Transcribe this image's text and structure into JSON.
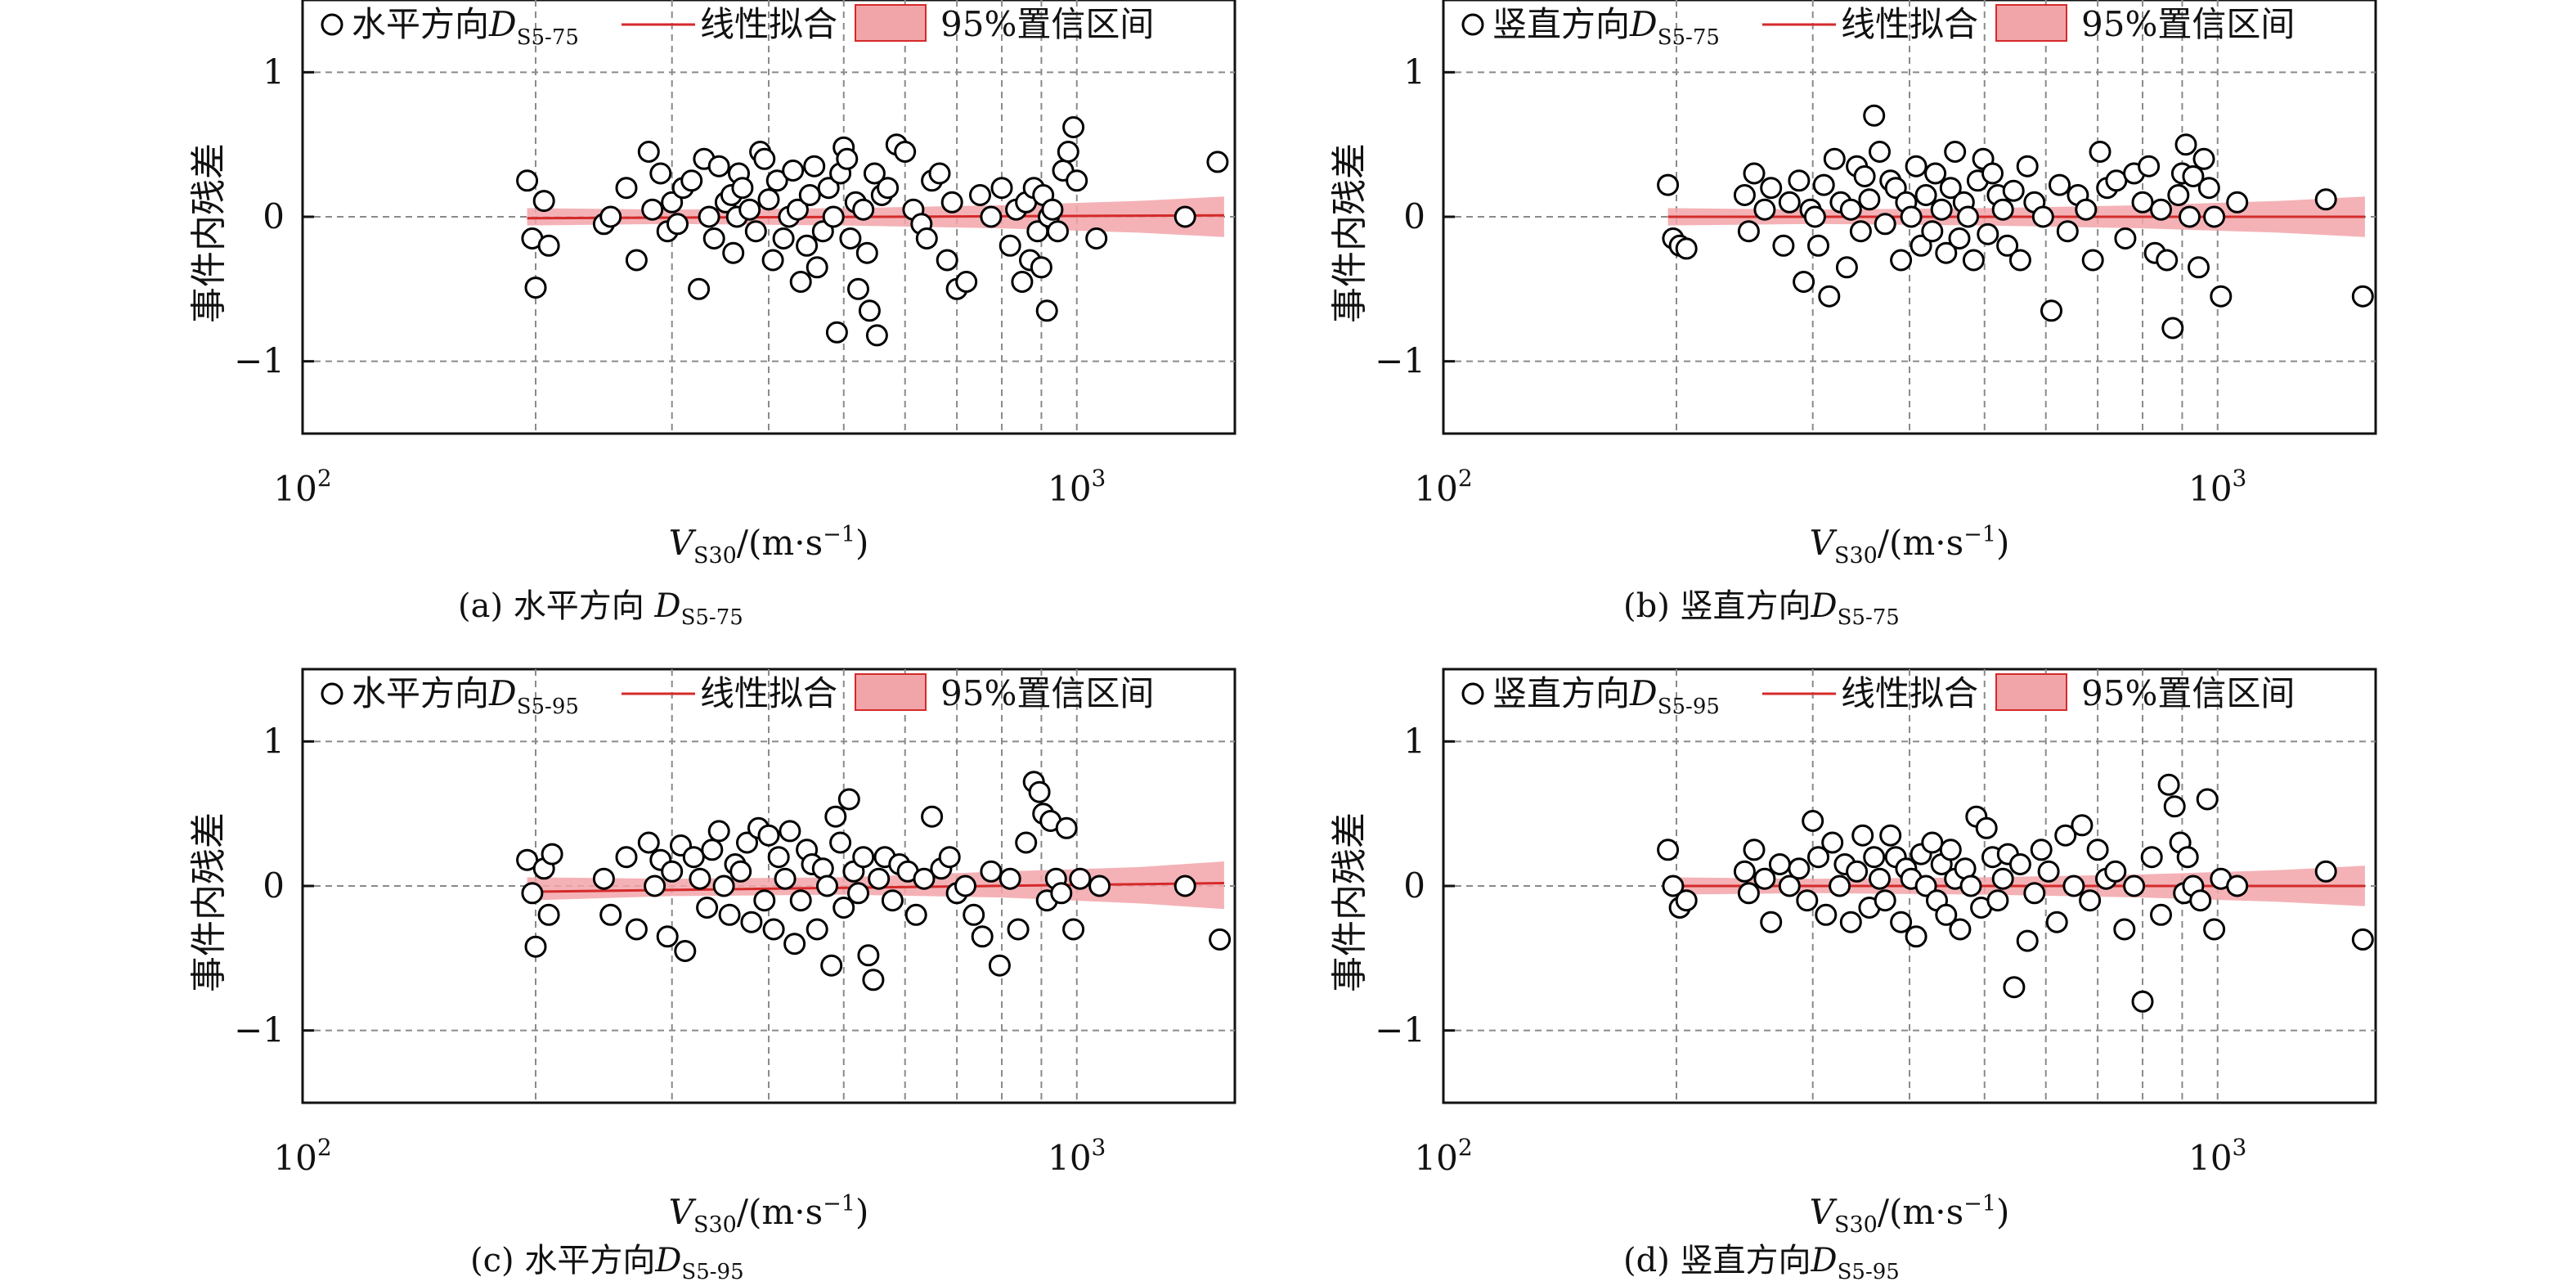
{
  "axis_common": {
    "xlabel_main": "V",
    "xlabel_sub": "S30",
    "xlabel_unit_prefix": "/(m·s",
    "xlabel_unit_sup": "−1",
    "xlabel_unit_suffix": ")",
    "ylabel": "事件内残差",
    "x_log_base": "10",
    "x_tick_exponents": [
      "2",
      "3"
    ],
    "y_ticks": [
      {
        "value": 1,
        "label": "1"
      },
      {
        "value": 0,
        "label": "0"
      },
      {
        "value": -1,
        "label": "−1"
      }
    ]
  },
  "legend_common": {
    "fit": "线性拟合",
    "ci": "95%置信区间"
  },
  "colors": {
    "fit_line": "#d42a2a",
    "ci_band": "#f2a5a9",
    "marker_edge": "#000000",
    "grid": "#8a8a8a"
  },
  "chart_data": [
    {
      "type": "scatter",
      "xscale": "log",
      "xlim": [
        100,
        1600
      ],
      "ylim": [
        -1.5,
        1.5
      ],
      "grid": true,
      "legend_position": "top",
      "caption_prefix": "(a) 水平方向 ",
      "caption_sym": "D",
      "caption_sub": "S5-75",
      "legend_series_prefix": "水平方向",
      "legend_sym": "D",
      "legend_sub": "S5-75",
      "fit": {
        "x": [
          195,
          1550
        ],
        "y": [
          -0.01,
          0.01
        ]
      },
      "ci": {
        "x": [
          195,
          300,
          500,
          800,
          1200,
          1550
        ],
        "lower": [
          -0.06,
          -0.05,
          -0.06,
          -0.08,
          -0.11,
          -0.14
        ],
        "upper": [
          0.06,
          0.05,
          0.06,
          0.08,
          0.11,
          0.14
        ]
      },
      "series": [
        {
          "x": [
            195,
            198,
            200,
            205,
            208,
            245,
            250,
            262,
            270,
            280,
            283,
            290,
            296,
            300,
            305,
            310,
            318,
            325,
            330,
            335,
            340,
            345,
            352,
            358,
            360,
            364,
            366,
            370,
            378,
            385,
            390,
            395,
            400,
            405,
            410,
            418,
            425,
            430,
            436,
            440,
            448,
            452,
            458,
            462,
            470,
            478,
            485,
            490,
            495,
            500,
            505,
            510,
            518,
            522,
            530,
            536,
            540,
            548,
            552,
            560,
            570,
            585,
            600,
            615,
            630,
            640,
            650,
            665,
            680,
            690,
            700,
            720,
            750,
            775,
            800,
            820,
            835,
            850,
            860,
            870,
            880,
            890,
            900,
            905,
            915,
            920,
            930,
            945,
            960,
            975,
            990,
            1000,
            1060,
            1380,
            1520
          ],
          "y": [
            0.25,
            -0.15,
            -0.49,
            0.11,
            -0.2,
            -0.05,
            0.0,
            0.2,
            -0.3,
            0.45,
            0.05,
            0.3,
            -0.1,
            0.1,
            -0.05,
            0.2,
            0.25,
            -0.5,
            0.4,
            0.0,
            -0.15,
            0.35,
            0.1,
            0.15,
            -0.25,
            0.0,
            0.3,
            0.2,
            0.05,
            -0.1,
            0.45,
            0.4,
            0.12,
            -0.3,
            0.25,
            -0.15,
            0.0,
            0.32,
            0.05,
            -0.45,
            -0.2,
            0.15,
            0.35,
            -0.35,
            -0.1,
            0.2,
            0.0,
            -0.8,
            0.3,
            0.48,
            0.4,
            -0.15,
            0.1,
            -0.5,
            0.05,
            -0.25,
            -0.65,
            0.3,
            -0.82,
            0.15,
            0.2,
            0.5,
            0.45,
            0.05,
            -0.05,
            -0.15,
            0.25,
            0.3,
            -0.3,
            0.1,
            -0.5,
            -0.45,
            0.15,
            0.0,
            0.2,
            -0.2,
            0.05,
            -0.45,
            0.1,
            -0.3,
            0.2,
            -0.1,
            -0.35,
            0.15,
            -0.65,
            0.0,
            0.05,
            -0.1,
            0.32,
            0.45,
            0.62,
            0.25,
            -0.15,
            0.0,
            0.38
          ]
        }
      ]
    },
    {
      "type": "scatter",
      "xscale": "log",
      "xlim": [
        100,
        1600
      ],
      "ylim": [
        -1.5,
        1.5
      ],
      "grid": true,
      "legend_position": "top",
      "caption_prefix": "(b) 竖直方向",
      "caption_sym": "D",
      "caption_sub": "S5-75",
      "legend_series_prefix": "竖直方向",
      "legend_sym": "D",
      "legend_sub": "S5-75",
      "fit": {
        "x": [
          195,
          1550
        ],
        "y": [
          0.0,
          0.0
        ]
      },
      "ci": {
        "x": [
          195,
          300,
          500,
          800,
          1200,
          1550
        ],
        "lower": [
          -0.06,
          -0.05,
          -0.06,
          -0.08,
          -0.11,
          -0.14
        ],
        "upper": [
          0.06,
          0.05,
          0.06,
          0.08,
          0.11,
          0.14
        ]
      },
      "series": [
        {
          "x": [
            195,
            198,
            202,
            206,
            245,
            248,
            252,
            260,
            265,
            275,
            280,
            288,
            292,
            298,
            302,
            305,
            310,
            315,
            320,
            326,
            332,
            336,
            342,
            346,
            350,
            355,
            360,
            366,
            372,
            378,
            384,
            390,
            396,
            402,
            408,
            414,
            420,
            428,
            432,
            440,
            446,
            452,
            458,
            464,
            470,
            476,
            484,
            490,
            498,
            505,
            512,
            520,
            528,
            535,
            545,
            556,
            568,
            580,
            595,
            610,
            625,
            640,
            660,
            676,
            690,
            705,
            720,
            740,
            760,
            780,
            800,
            815,
            830,
            845,
            860,
            875,
            890,
            900,
            910,
            920,
            930,
            945,
            960,
            975,
            990,
            1010,
            1060,
            1380,
            1540
          ],
          "y": [
            0.22,
            -0.15,
            -0.2,
            -0.22,
            0.15,
            -0.1,
            0.3,
            0.05,
            0.2,
            -0.2,
            0.1,
            0.25,
            -0.45,
            0.05,
            0.0,
            -0.2,
            0.22,
            -0.55,
            0.4,
            0.1,
            -0.35,
            0.05,
            0.35,
            -0.1,
            0.28,
            0.12,
            0.7,
            0.45,
            -0.05,
            0.25,
            0.2,
            -0.3,
            0.1,
            0.0,
            0.35,
            -0.2,
            0.15,
            -0.1,
            0.3,
            0.05,
            -0.25,
            0.2,
            0.45,
            -0.15,
            0.1,
            0.0,
            -0.3,
            0.25,
            0.4,
            -0.12,
            0.3,
            0.15,
            0.05,
            -0.2,
            0.18,
            -0.3,
            0.35,
            0.1,
            0.0,
            -0.65,
            0.22,
            -0.1,
            0.15,
            0.05,
            -0.3,
            0.45,
            0.2,
            0.25,
            -0.15,
            0.3,
            0.1,
            0.35,
            -0.25,
            0.05,
            -0.3,
            -0.77,
            0.15,
            0.3,
            0.5,
            0.0,
            0.28,
            -0.35,
            0.4,
            0.2,
            0.0,
            -0.55,
            0.1,
            0.12,
            -0.55
          ]
        }
      ]
    },
    {
      "type": "scatter",
      "xscale": "log",
      "xlim": [
        100,
        1600
      ],
      "ylim": [
        -1.5,
        1.5
      ],
      "grid": true,
      "legend_position": "top",
      "caption_prefix": "(c) 水平方向",
      "caption_sym": "D",
      "caption_sub": "S5-95",
      "legend_series_prefix": "水平方向",
      "legend_sym": "D",
      "legend_sub": "S5-95",
      "fit": {
        "x": [
          195,
          1550
        ],
        "y": [
          -0.04,
          0.02
        ]
      },
      "ci": {
        "x": [
          195,
          300,
          500,
          800,
          1200,
          1550
        ],
        "lower": [
          -0.1,
          -0.07,
          -0.06,
          -0.08,
          -0.12,
          -0.16
        ],
        "upper": [
          0.06,
          0.05,
          0.06,
          0.1,
          0.13,
          0.17
        ]
      },
      "series": [
        {
          "x": [
            195,
            198,
            200,
            205,
            208,
            210,
            245,
            250,
            262,
            270,
            280,
            285,
            290,
            296,
            300,
            308,
            312,
            320,
            326,
            333,
            338,
            345,
            350,
            356,
            362,
            368,
            375,
            380,
            388,
            395,
            400,
            406,
            412,
            420,
            426,
            432,
            440,
            448,
            455,
            462,
            470,
            476,
            482,
            488,
            495,
            500,
            508,
            515,
            522,
            530,
            538,
            546,
            555,
            565,
            578,
            590,
            605,
            620,
            635,
            650,
            668,
            685,
            700,
            718,
            736,
            755,
            775,
            795,
            820,
            840,
            860,
            880,
            895,
            905,
            915,
            925,
            940,
            955,
            970,
            990,
            1010,
            1070,
            1380,
            1530
          ],
          "y": [
            0.18,
            -0.05,
            -0.42,
            0.12,
            -0.2,
            0.22,
            0.05,
            -0.2,
            0.2,
            -0.3,
            0.3,
            0.0,
            0.18,
            -0.35,
            0.1,
            0.28,
            -0.45,
            0.2,
            0.05,
            -0.15,
            0.25,
            0.38,
            0.0,
            -0.2,
            0.15,
            0.1,
            0.3,
            -0.25,
            0.4,
            -0.1,
            0.35,
            -0.3,
            0.2,
            0.05,
            0.38,
            -0.4,
            -0.1,
            0.25,
            0.15,
            -0.3,
            0.12,
            0.0,
            -0.55,
            0.48,
            0.3,
            -0.15,
            0.6,
            0.1,
            -0.05,
            0.2,
            -0.48,
            -0.65,
            0.05,
            0.2,
            -0.1,
            0.15,
            0.1,
            -0.2,
            0.05,
            0.48,
            0.12,
            0.2,
            -0.05,
            0.0,
            -0.2,
            -0.35,
            0.1,
            -0.55,
            0.05,
            -0.3,
            0.3,
            0.72,
            0.65,
            0.5,
            -0.1,
            0.45,
            0.05,
            -0.05,
            0.4,
            -0.3,
            0.05,
            0.0,
            0.0,
            -0.37
          ]
        }
      ]
    },
    {
      "type": "scatter",
      "xscale": "log",
      "xlim": [
        100,
        1600
      ],
      "ylim": [
        -1.5,
        1.5
      ],
      "grid": true,
      "legend_position": "top",
      "caption_prefix": "(d) 竖直方向",
      "caption_sym": "D",
      "caption_sub": "S5-95",
      "legend_series_prefix": "竖直方向",
      "legend_sym": "D",
      "legend_sub": "S5-95",
      "fit": {
        "x": [
          195,
          1550
        ],
        "y": [
          0.0,
          0.0
        ]
      },
      "ci": {
        "x": [
          195,
          300,
          500,
          800,
          1200,
          1550
        ],
        "lower": [
          -0.06,
          -0.05,
          -0.06,
          -0.08,
          -0.11,
          -0.14
        ],
        "upper": [
          0.06,
          0.05,
          0.06,
          0.08,
          0.11,
          0.14
        ]
      },
      "series": [
        {
          "x": [
            195,
            198,
            202,
            206,
            245,
            248,
            252,
            260,
            265,
            272,
            280,
            288,
            295,
            300,
            305,
            312,
            318,
            325,
            330,
            336,
            342,
            348,
            355,
            360,
            366,
            372,
            378,
            384,
            390,
            396,
            402,
            408,
            414,
            420,
            428,
            434,
            440,
            446,
            452,
            458,
            465,
            472,
            480,
            488,
            495,
            503,
            512,
            520,
            528,
            536,
            546,
            556,
            568,
            580,
            592,
            605,
            620,
            636,
            652,
            668,
            684,
            700,
            718,
            738,
            758,
            780,
            800,
            822,
            845,
            865,
            880,
            895,
            905,
            915,
            930,
            950,
            970,
            990,
            1010,
            1060,
            1380,
            1540
          ],
          "y": [
            0.25,
            0.0,
            -0.15,
            -0.1,
            0.1,
            -0.05,
            0.25,
            0.05,
            -0.25,
            0.15,
            0.0,
            0.12,
            -0.1,
            0.45,
            0.2,
            -0.2,
            0.3,
            0.0,
            0.15,
            -0.25,
            0.1,
            0.35,
            -0.15,
            0.2,
            0.05,
            -0.1,
            0.35,
            0.2,
            -0.25,
            0.12,
            0.05,
            -0.35,
            0.22,
            0.0,
            0.3,
            -0.1,
            0.15,
            -0.2,
            0.25,
            0.05,
            -0.3,
            0.12,
            0.0,
            0.48,
            -0.15,
            0.4,
            0.2,
            -0.1,
            0.05,
            0.22,
            -0.7,
            0.15,
            -0.38,
            -0.05,
            0.25,
            0.1,
            -0.25,
            0.35,
            0.0,
            0.42,
            -0.1,
            0.25,
            0.05,
            0.1,
            -0.3,
            0.0,
            -0.8,
            0.2,
            -0.2,
            0.7,
            0.55,
            0.3,
            -0.05,
            0.2,
            0.0,
            -0.1,
            0.6,
            -0.3,
            0.05,
            0.0,
            0.1,
            -0.37
          ]
        }
      ]
    }
  ]
}
